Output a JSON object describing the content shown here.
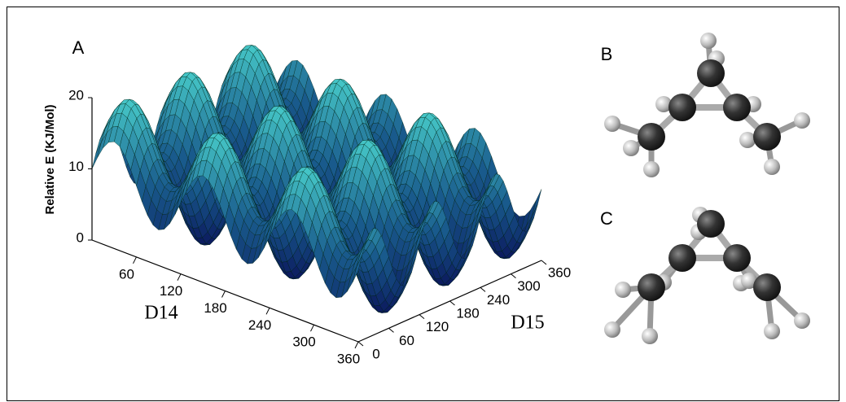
{
  "panels": {
    "a": {
      "label": "A",
      "z_axis": {
        "label": "Relative E (KJ/Mol)",
        "ticks": [
          0,
          10,
          20
        ]
      },
      "x_axis": {
        "label": "D14",
        "ticks": [
          60,
          120,
          180,
          240,
          300,
          360
        ]
      },
      "y_axis": {
        "label": "D15",
        "ticks": [
          0,
          60,
          120,
          180,
          240,
          300,
          360
        ]
      }
    },
    "b": {
      "label": "B"
    },
    "c": {
      "label": "C"
    }
  }
}
